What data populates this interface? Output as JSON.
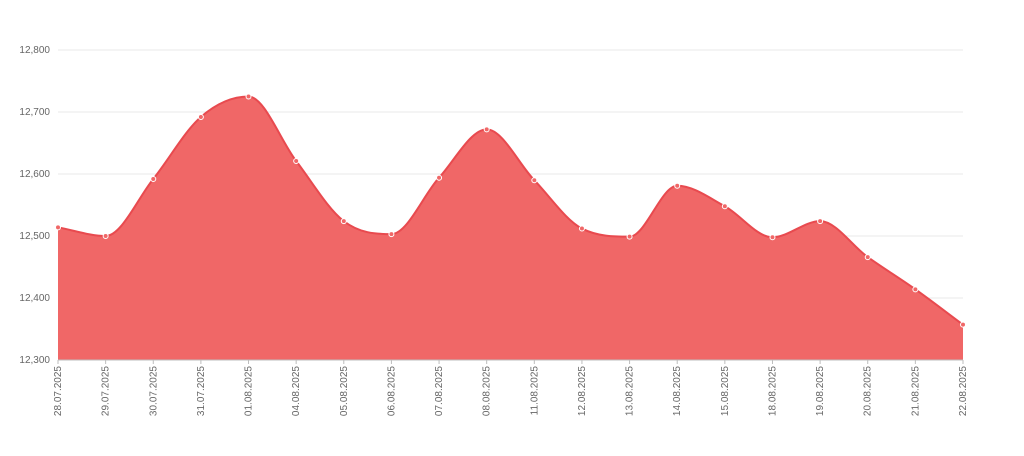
{
  "chart_data": {
    "type": "area",
    "categories": [
      "28.07.2025",
      "29.07.2025",
      "30.07.2025",
      "31.07.2025",
      "01.08.2025",
      "04.08.2025",
      "05.08.2025",
      "06.08.2025",
      "07.08.2025",
      "08.08.2025",
      "11.08.2025",
      "12.08.2025",
      "13.08.2025",
      "14.08.2025",
      "15.08.2025",
      "18.08.2025",
      "19.08.2025",
      "20.08.2025",
      "21.08.2025",
      "22.08.2025"
    ],
    "values": [
      12514,
      12500,
      12592,
      12692,
      12725,
      12621,
      12524,
      12503,
      12594,
      12672,
      12590,
      12512,
      12499,
      12581,
      12548,
      12498,
      12524,
      12466,
      12414,
      12357
    ],
    "ylim": [
      12300,
      12800
    ],
    "yticks": [
      "12,300",
      "12,400",
      "12,500",
      "12,600",
      "12,700",
      "12,800"
    ],
    "ytick_values": [
      12300,
      12400,
      12500,
      12600,
      12700,
      12800
    ],
    "grid": true,
    "fill_color": "#f06767",
    "line_color": "#e84a4f"
  }
}
